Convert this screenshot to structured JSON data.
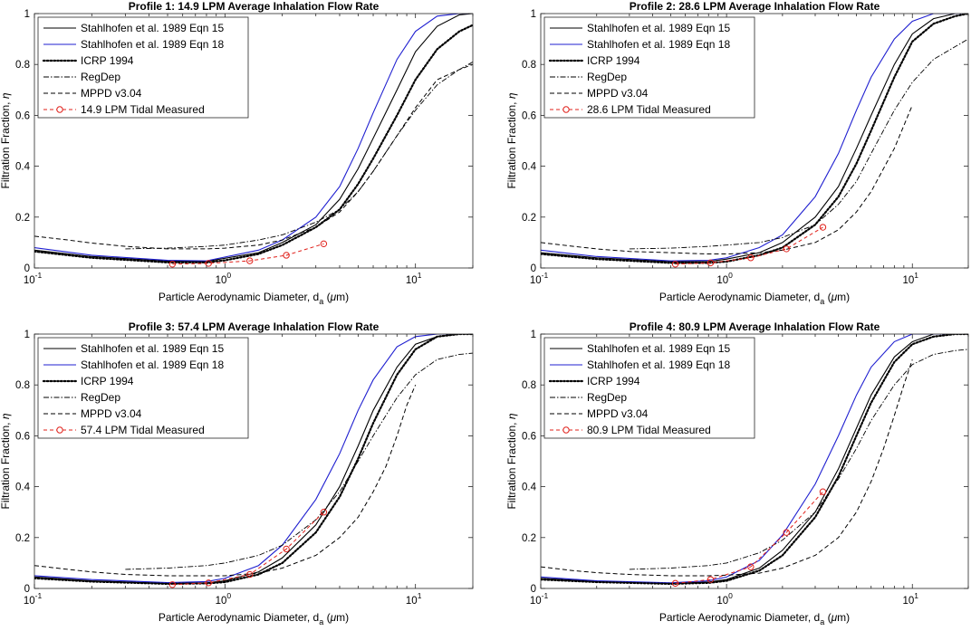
{
  "figure": {
    "xlabel": "Particle Aerodynamic Diameter, d",
    "xlabel_sub": "a",
    "xlabel_unit_pre": " (",
    "xlabel_mu": "μ",
    "xlabel_unit_post": "m)",
    "ylabel": "Filtration Fraction, ",
    "ylabel_sym": "η",
    "x_tick_labels": [
      {
        "base": "10",
        "exp": "-1",
        "value": 0.1
      },
      {
        "base": "10",
        "exp": "0",
        "value": 1
      },
      {
        "base": "10",
        "exp": "1",
        "value": 10
      }
    ],
    "y_tick_labels": [
      "0",
      "0.2",
      "0.4",
      "0.6",
      "0.8",
      "1"
    ],
    "y_tick_values": [
      0,
      0.2,
      0.4,
      0.6,
      0.8,
      1
    ]
  },
  "colors": {
    "stahl15": "#000000",
    "stahl18": "#1f1fd0",
    "icrp": "#000000",
    "regdep": "#000000",
    "mppd": "#000000",
    "measured": "#e0201a"
  },
  "chart_data": [
    {
      "type": "line",
      "title": "Profile 1: 14.9 LPM Average Inhalation Flow Rate",
      "xscale": "log",
      "xlim": [
        0.1,
        20
      ],
      "ylim": [
        0,
        1
      ],
      "legend_position": "top-left",
      "series": [
        {
          "name": "Stahlhofen et al. 1989 Eqn 15",
          "key": "stahl15",
          "style": "solid",
          "x": [
            0.1,
            0.2,
            0.5,
            0.8,
            1.5,
            2,
            3,
            4,
            5,
            6,
            8,
            10,
            13,
            17,
            20
          ],
          "y": [
            0.07,
            0.045,
            0.027,
            0.026,
            0.06,
            0.1,
            0.17,
            0.27,
            0.39,
            0.51,
            0.7,
            0.85,
            0.95,
            0.995,
            1
          ]
        },
        {
          "name": "Stahlhofen et al. 1989 Eqn 18",
          "key": "stahl18",
          "style": "solid",
          "x": [
            0.1,
            0.2,
            0.5,
            0.8,
            1.5,
            2,
            3,
            4,
            5,
            6,
            8,
            10,
            13,
            17,
            20
          ],
          "y": [
            0.08,
            0.05,
            0.03,
            0.028,
            0.07,
            0.11,
            0.2,
            0.32,
            0.47,
            0.61,
            0.82,
            0.93,
            0.99,
            1,
            1
          ]
        },
        {
          "name": "ICRP 1994",
          "key": "icrp",
          "style": "dotted",
          "x": [
            0.1,
            0.2,
            0.5,
            0.8,
            1,
            1.5,
            2,
            3,
            4,
            5,
            6,
            8,
            10,
            13,
            17,
            20
          ],
          "y": [
            0.065,
            0.04,
            0.022,
            0.022,
            0.03,
            0.055,
            0.09,
            0.16,
            0.23,
            0.33,
            0.43,
            0.6,
            0.74,
            0.86,
            0.93,
            0.955
          ]
        },
        {
          "name": "RegDep",
          "key": "regdep",
          "style": "dashdot",
          "x": [
            0.3,
            0.5,
            0.8,
            1,
            1.5,
            2,
            3,
            4,
            5,
            6,
            8,
            10,
            13,
            17,
            20
          ],
          "y": [
            0.075,
            0.078,
            0.085,
            0.09,
            0.11,
            0.13,
            0.18,
            0.23,
            0.3,
            0.38,
            0.52,
            0.62,
            0.72,
            0.78,
            0.81
          ]
        },
        {
          "name": "MPPD v3.04",
          "key": "mppd",
          "style": "dashed",
          "x": [
            0.1,
            0.15,
            0.2,
            0.3,
            0.5,
            0.8,
            1,
            1.5,
            2,
            3,
            4,
            5,
            6,
            8,
            10,
            13,
            17,
            20
          ],
          "y": [
            0.125,
            0.11,
            0.098,
            0.085,
            0.075,
            0.075,
            0.078,
            0.09,
            0.11,
            0.16,
            0.22,
            0.3,
            0.38,
            0.52,
            0.63,
            0.74,
            0.78,
            0.8
          ]
        },
        {
          "name": "14.9 LPM Tidal Measured",
          "key": "measured",
          "style": "dashed-marker",
          "x": [
            0.53,
            0.82,
            1.35,
            2.1,
            3.3
          ],
          "y": [
            0.015,
            0.018,
            0.028,
            0.05,
            0.095
          ]
        }
      ]
    },
    {
      "type": "line",
      "title": "Profile 2: 28.6 LPM Average Inhalation Flow Rate",
      "xscale": "log",
      "xlim": [
        0.1,
        20
      ],
      "ylim": [
        0,
        1
      ],
      "legend_position": "top-left",
      "series": [
        {
          "name": "Stahlhofen et al. 1989 Eqn 15",
          "key": "stahl15",
          "style": "solid",
          "x": [
            0.1,
            0.2,
            0.5,
            0.8,
            1,
            1.5,
            2,
            3,
            4,
            5,
            6,
            8,
            10,
            13,
            17,
            20
          ],
          "y": [
            0.06,
            0.04,
            0.025,
            0.025,
            0.035,
            0.06,
            0.1,
            0.2,
            0.32,
            0.47,
            0.6,
            0.8,
            0.92,
            0.98,
            1,
            1
          ]
        },
        {
          "name": "Stahlhofen et al. 1989 Eqn 18",
          "key": "stahl18",
          "style": "solid",
          "x": [
            0.1,
            0.2,
            0.5,
            0.8,
            1,
            1.5,
            2,
            3,
            4,
            5,
            6,
            8,
            10,
            13,
            17,
            20
          ],
          "y": [
            0.07,
            0.045,
            0.028,
            0.03,
            0.04,
            0.08,
            0.13,
            0.28,
            0.45,
            0.62,
            0.75,
            0.9,
            0.97,
            1,
            1,
            1
          ]
        },
        {
          "name": "ICRP 1994",
          "key": "icrp",
          "style": "dotted",
          "x": [
            0.1,
            0.2,
            0.5,
            0.8,
            1,
            1.5,
            2,
            3,
            4,
            5,
            6,
            8,
            10,
            13,
            17,
            20
          ],
          "y": [
            0.055,
            0.035,
            0.02,
            0.02,
            0.025,
            0.05,
            0.08,
            0.17,
            0.28,
            0.41,
            0.54,
            0.75,
            0.89,
            0.96,
            0.99,
            1
          ]
        },
        {
          "name": "RegDep",
          "key": "regdep",
          "style": "dashdot",
          "x": [
            0.3,
            0.5,
            0.8,
            1,
            1.5,
            2,
            3,
            4,
            5,
            6,
            8,
            10,
            13,
            17,
            20
          ],
          "y": [
            0.075,
            0.078,
            0.085,
            0.09,
            0.1,
            0.12,
            0.17,
            0.25,
            0.34,
            0.45,
            0.62,
            0.73,
            0.82,
            0.87,
            0.9
          ]
        },
        {
          "name": "MPPD v3.04",
          "key": "mppd",
          "style": "dashed",
          "x": [
            0.1,
            0.15,
            0.2,
            0.3,
            0.5,
            0.8,
            1,
            1.5,
            2,
            3,
            4,
            5,
            6,
            8,
            10
          ],
          "y": [
            0.1,
            0.085,
            0.075,
            0.065,
            0.06,
            0.055,
            0.055,
            0.06,
            0.07,
            0.1,
            0.15,
            0.22,
            0.3,
            0.47,
            0.64
          ]
        },
        {
          "name": "28.6 LPM Tidal Measured",
          "key": "measured",
          "style": "dashed-marker",
          "x": [
            0.53,
            0.82,
            1.35,
            2.1,
            3.3
          ],
          "y": [
            0.015,
            0.02,
            0.04,
            0.075,
            0.16
          ]
        }
      ]
    },
    {
      "type": "line",
      "title": "Profile 3: 57.4 LPM Average Inhalation Flow Rate",
      "xscale": "log",
      "xlim": [
        0.1,
        20
      ],
      "ylim": [
        0,
        1
      ],
      "legend_position": "top-left",
      "series": [
        {
          "name": "Stahlhofen et al. 1989 Eqn 15",
          "key": "stahl15",
          "style": "solid",
          "x": [
            0.1,
            0.2,
            0.5,
            0.8,
            1,
            1.5,
            2,
            3,
            4,
            5,
            6,
            8,
            10,
            13,
            17,
            20
          ],
          "y": [
            0.045,
            0.03,
            0.02,
            0.022,
            0.03,
            0.065,
            0.12,
            0.25,
            0.4,
            0.56,
            0.7,
            0.87,
            0.96,
            0.99,
            1,
            1
          ]
        },
        {
          "name": "Stahlhofen et al. 1989 Eqn 18",
          "key": "stahl18",
          "style": "solid",
          "x": [
            0.1,
            0.2,
            0.5,
            0.8,
            1,
            1.5,
            2,
            3,
            4,
            5,
            6,
            8,
            10,
            13,
            17,
            20
          ],
          "y": [
            0.05,
            0.035,
            0.023,
            0.027,
            0.04,
            0.09,
            0.17,
            0.35,
            0.53,
            0.7,
            0.82,
            0.95,
            0.99,
            1,
            1,
            1
          ]
        },
        {
          "name": "ICRP 1994",
          "key": "icrp",
          "style": "dotted",
          "x": [
            0.1,
            0.2,
            0.5,
            0.8,
            1,
            1.5,
            2,
            3,
            4,
            5,
            6,
            8,
            10,
            13,
            17,
            20
          ],
          "y": [
            0.04,
            0.027,
            0.018,
            0.02,
            0.025,
            0.055,
            0.1,
            0.22,
            0.36,
            0.51,
            0.65,
            0.84,
            0.94,
            0.99,
            1,
            1
          ]
        },
        {
          "name": "RegDep",
          "key": "regdep",
          "style": "dashdot",
          "x": [
            0.3,
            0.5,
            0.8,
            1,
            1.5,
            2,
            3,
            4,
            5,
            6,
            8,
            10,
            13,
            17,
            20
          ],
          "y": [
            0.075,
            0.08,
            0.09,
            0.1,
            0.13,
            0.17,
            0.27,
            0.38,
            0.5,
            0.6,
            0.75,
            0.84,
            0.9,
            0.92,
            0.925
          ]
        },
        {
          "name": "MPPD v3.04",
          "key": "mppd",
          "style": "dashed",
          "x": [
            0.1,
            0.15,
            0.2,
            0.3,
            0.5,
            0.8,
            1,
            1.5,
            2,
            3,
            4,
            5,
            6,
            7,
            8,
            9,
            10
          ],
          "y": [
            0.09,
            0.075,
            0.065,
            0.055,
            0.05,
            0.05,
            0.05,
            0.06,
            0.08,
            0.13,
            0.2,
            0.28,
            0.38,
            0.48,
            0.6,
            0.72,
            0.8
          ]
        },
        {
          "name": "57.4 LPM Tidal Measured",
          "key": "measured",
          "style": "dashed-marker",
          "x": [
            0.53,
            0.82,
            1.35,
            2.1,
            3.3
          ],
          "y": [
            0.015,
            0.022,
            0.055,
            0.155,
            0.3
          ]
        }
      ]
    },
    {
      "type": "line",
      "title": "Profile 4: 80.9 LPM Average Inhalation Flow Rate",
      "xscale": "log",
      "xlim": [
        0.1,
        20
      ],
      "ylim": [
        0,
        1
      ],
      "legend_position": "top-left",
      "series": [
        {
          "name": "Stahlhofen et al. 1989 Eqn 15",
          "key": "stahl15",
          "style": "solid",
          "x": [
            0.1,
            0.2,
            0.5,
            0.8,
            1,
            1.5,
            2,
            3,
            4,
            5,
            6,
            8,
            10,
            13,
            17,
            20
          ],
          "y": [
            0.04,
            0.028,
            0.02,
            0.025,
            0.035,
            0.08,
            0.15,
            0.3,
            0.47,
            0.63,
            0.76,
            0.91,
            0.97,
            1,
            1,
            1
          ]
        },
        {
          "name": "Stahlhofen et al. 1989 Eqn 18",
          "key": "stahl18",
          "style": "solid",
          "x": [
            0.1,
            0.2,
            0.5,
            0.8,
            1,
            1.5,
            2,
            3,
            4,
            5,
            6,
            8,
            10,
            13,
            17,
            20
          ],
          "y": [
            0.045,
            0.03,
            0.022,
            0.03,
            0.045,
            0.11,
            0.21,
            0.41,
            0.6,
            0.76,
            0.87,
            0.97,
            1,
            1,
            1,
            1
          ]
        },
        {
          "name": "ICRP 1994",
          "key": "icrp",
          "style": "dotted",
          "x": [
            0.1,
            0.2,
            0.5,
            0.8,
            1,
            1.5,
            2,
            3,
            4,
            5,
            6,
            8,
            10,
            13,
            17,
            20
          ],
          "y": [
            0.035,
            0.025,
            0.018,
            0.022,
            0.03,
            0.07,
            0.13,
            0.28,
            0.44,
            0.6,
            0.73,
            0.89,
            0.96,
            0.99,
            1,
            1
          ]
        },
        {
          "name": "RegDep",
          "key": "regdep",
          "style": "dashdot",
          "x": [
            0.3,
            0.5,
            0.8,
            1,
            1.5,
            2,
            3,
            4,
            5,
            6,
            8,
            10,
            13,
            17,
            20
          ],
          "y": [
            0.075,
            0.08,
            0.09,
            0.1,
            0.14,
            0.19,
            0.3,
            0.43,
            0.55,
            0.66,
            0.8,
            0.88,
            0.92,
            0.935,
            0.94
          ]
        },
        {
          "name": "MPPD v3.04",
          "key": "mppd",
          "style": "dashed",
          "x": [
            0.1,
            0.15,
            0.2,
            0.3,
            0.5,
            0.8,
            1,
            1.5,
            2,
            3,
            4,
            5,
            6,
            7,
            8,
            9,
            10
          ],
          "y": [
            0.085,
            0.07,
            0.062,
            0.055,
            0.05,
            0.05,
            0.052,
            0.06,
            0.08,
            0.13,
            0.2,
            0.3,
            0.42,
            0.55,
            0.68,
            0.8,
            0.9
          ]
        },
        {
          "name": "80.9 LPM Tidal Measured",
          "key": "measured",
          "style": "dashed-marker",
          "x": [
            0.53,
            0.82,
            1.35,
            2.1,
            3.3
          ],
          "y": [
            0.02,
            0.035,
            0.085,
            0.22,
            0.38
          ]
        }
      ]
    }
  ]
}
